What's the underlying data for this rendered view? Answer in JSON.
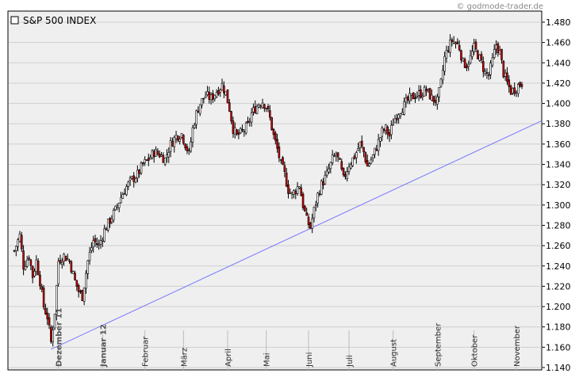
{
  "chart_data": {
    "type": "candlestick",
    "title": "S&P 500 INDEX",
    "credit": "© godmode-trader.de",
    "ylim": [
      1140,
      1490
    ],
    "yticks": [
      {
        "value": 1140,
        "label": "1.140"
      },
      {
        "value": 1160,
        "label": "1.160"
      },
      {
        "value": 1180,
        "label": "1.180"
      },
      {
        "value": 1200,
        "label": "1.200"
      },
      {
        "value": 1220,
        "label": "1.220"
      },
      {
        "value": 1240,
        "label": "1.240"
      },
      {
        "value": 1260,
        "label": "1.260"
      },
      {
        "value": 1280,
        "label": "1.280"
      },
      {
        "value": 1300,
        "label": "1.300"
      },
      {
        "value": 1320,
        "label": "1.320"
      },
      {
        "value": 1340,
        "label": "1.340"
      },
      {
        "value": 1360,
        "label": "1.360"
      },
      {
        "value": 1380,
        "label": "1.380"
      },
      {
        "value": 1400,
        "label": "1.400"
      },
      {
        "value": 1420,
        "label": "1.420"
      },
      {
        "value": 1440,
        "label": "1.440"
      },
      {
        "value": 1460,
        "label": "1.460"
      },
      {
        "value": 1480,
        "label": "1.480"
      }
    ],
    "xticks": [
      {
        "index": 24,
        "label": "Dezember 11",
        "bold": true
      },
      {
        "index": 48,
        "label": "Januar 12",
        "bold": true
      },
      {
        "index": 71,
        "label": "Februar",
        "bold": false
      },
      {
        "index": 92,
        "label": "März",
        "bold": false
      },
      {
        "index": 116,
        "label": "April",
        "bold": false
      },
      {
        "index": 137,
        "label": "Mai",
        "bold": false
      },
      {
        "index": 160,
        "label": "Juni",
        "bold": false
      },
      {
        "index": 182,
        "label": "Juli",
        "bold": false
      },
      {
        "index": 206,
        "label": "August",
        "bold": false
      },
      {
        "index": 230,
        "label": "September",
        "bold": false
      },
      {
        "index": 250,
        "label": "Oktober",
        "bold": false
      },
      {
        "index": 273,
        "label": "November",
        "bold": false
      }
    ],
    "trendline": {
      "from": {
        "index": 20,
        "value": 1158
      },
      "to": {
        "index": 288,
        "value": 1384
      },
      "color": "#7777ff"
    },
    "colors": {
      "up": "#ffffff",
      "down": "#cc0000",
      "wick": "#000000",
      "background": "#efefef",
      "grid": "#cfcfcf"
    },
    "close_path": [
      [
        0,
        1255
      ],
      [
        3,
        1270
      ],
      [
        5,
        1240
      ],
      [
        8,
        1250
      ],
      [
        10,
        1230
      ],
      [
        12,
        1245
      ],
      [
        14,
        1225
      ],
      [
        16,
        1200
      ],
      [
        18,
        1190
      ],
      [
        20,
        1165
      ],
      [
        22,
        1195
      ],
      [
        24,
        1245
      ],
      [
        27,
        1250
      ],
      [
        30,
        1245
      ],
      [
        33,
        1225
      ],
      [
        35,
        1215
      ],
      [
        37,
        1210
      ],
      [
        40,
        1245
      ],
      [
        43,
        1265
      ],
      [
        46,
        1260
      ],
      [
        49,
        1275
      ],
      [
        52,
        1285
      ],
      [
        55,
        1295
      ],
      [
        58,
        1308
      ],
      [
        61,
        1318
      ],
      [
        64,
        1325
      ],
      [
        67,
        1330
      ],
      [
        70,
        1340
      ],
      [
        73,
        1345
      ],
      [
        76,
        1352
      ],
      [
        79,
        1350
      ],
      [
        82,
        1345
      ],
      [
        85,
        1360
      ],
      [
        88,
        1368
      ],
      [
        91,
        1370
      ],
      [
        93,
        1360
      ],
      [
        95,
        1350
      ],
      [
        97,
        1375
      ],
      [
        99,
        1390
      ],
      [
        101,
        1400
      ],
      [
        104,
        1408
      ],
      [
        107,
        1405
      ],
      [
        110,
        1412
      ],
      [
        113,
        1418
      ],
      [
        115,
        1410
      ],
      [
        117,
        1395
      ],
      [
        119,
        1375
      ],
      [
        121,
        1368
      ],
      [
        124,
        1372
      ],
      [
        127,
        1378
      ],
      [
        129,
        1390
      ],
      [
        131,
        1395
      ],
      [
        133,
        1400
      ],
      [
        135,
        1402
      ],
      [
        137,
        1397
      ],
      [
        139,
        1385
      ],
      [
        141,
        1368
      ],
      [
        143,
        1355
      ],
      [
        145,
        1340
      ],
      [
        147,
        1330
      ],
      [
        149,
        1315
      ],
      [
        151,
        1310
      ],
      [
        153,
        1315
      ],
      [
        155,
        1320
      ],
      [
        157,
        1300
      ],
      [
        159,
        1285
      ],
      [
        161,
        1278
      ],
      [
        163,
        1295
      ],
      [
        165,
        1310
      ],
      [
        167,
        1320
      ],
      [
        170,
        1330
      ],
      [
        173,
        1345
      ],
      [
        175,
        1350
      ],
      [
        177,
        1340
      ],
      [
        179,
        1325
      ],
      [
        182,
        1340
      ],
      [
        185,
        1348
      ],
      [
        188,
        1360
      ],
      [
        190,
        1352
      ],
      [
        192,
        1338
      ],
      [
        195,
        1348
      ],
      [
        198,
        1362
      ],
      [
        200,
        1372
      ],
      [
        202,
        1375
      ],
      [
        204,
        1368
      ],
      [
        206,
        1382
      ],
      [
        209,
        1392
      ],
      [
        212,
        1398
      ],
      [
        215,
        1405
      ],
      [
        218,
        1408
      ],
      [
        221,
        1410
      ],
      [
        224,
        1413
      ],
      [
        227,
        1405
      ],
      [
        230,
        1402
      ],
      [
        232,
        1420
      ],
      [
        234,
        1445
      ],
      [
        236,
        1455
      ],
      [
        238,
        1462
      ],
      [
        240,
        1460
      ],
      [
        242,
        1455
      ],
      [
        244,
        1440
      ],
      [
        246,
        1438
      ],
      [
        248,
        1445
      ],
      [
        250,
        1455
      ],
      [
        252,
        1448
      ],
      [
        254,
        1440
      ],
      [
        256,
        1430
      ],
      [
        258,
        1428
      ],
      [
        260,
        1442
      ],
      [
        262,
        1458
      ],
      [
        264,
        1450
      ],
      [
        266,
        1430
      ],
      [
        268,
        1420
      ],
      [
        270,
        1412
      ],
      [
        272,
        1414
      ],
      [
        274,
        1418
      ],
      [
        276,
        1420
      ]
    ]
  }
}
